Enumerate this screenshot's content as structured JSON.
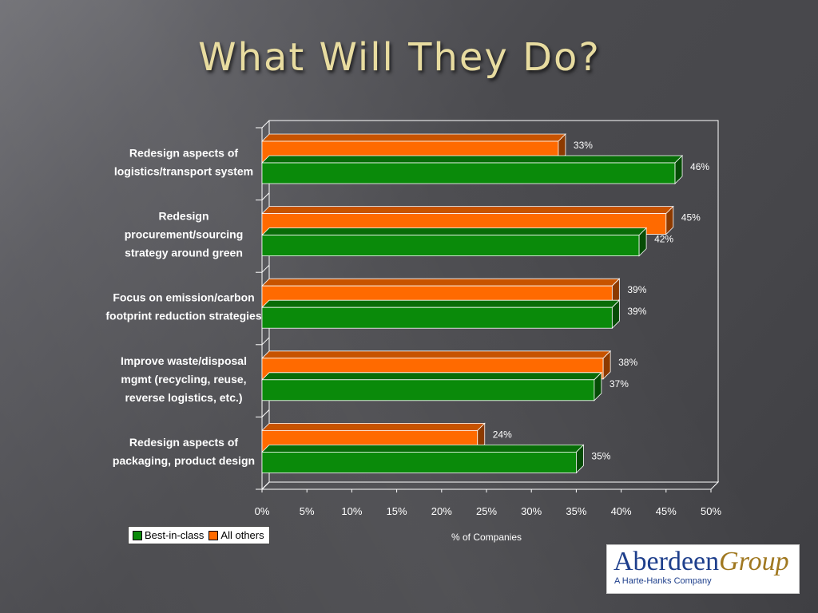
{
  "slide": {
    "title": "What Will They Do?"
  },
  "chart_data": {
    "type": "bar",
    "orientation": "horizontal",
    "categories": [
      "Redesign aspects of logistics/transport system",
      "Redesign procurement/sourcing strategy around green",
      "Focus on emission/carbon footprint reduction strategies",
      "Improve waste/disposal mgmt (recycling, reuse, reverse logistics, etc.)",
      "Redesign aspects of packaging, product design"
    ],
    "category_lines": [
      [
        "Redesign aspects of",
        "logistics/transport system"
      ],
      [
        "Redesign",
        "procurement/sourcing",
        "strategy around green"
      ],
      [
        "Focus on emission/carbon",
        "footprint reduction strategies"
      ],
      [
        "Improve waste/disposal",
        "mgmt (recycling, reuse,",
        "reverse logistics, etc.)"
      ],
      [
        "Redesign aspects of",
        "packaging, product design"
      ]
    ],
    "series": [
      {
        "name": "All others",
        "color": "#ff6a00",
        "values": [
          33,
          45,
          39,
          38,
          24
        ]
      },
      {
        "name": "Best-in-class",
        "color": "#0a8a0a",
        "values": [
          46,
          42,
          39,
          37,
          35
        ]
      }
    ],
    "legend_order": [
      "Best-in-class",
      "All others"
    ],
    "xlabel": "%  of Companies",
    "xlim": [
      0,
      50
    ],
    "xticks": [
      0,
      5,
      10,
      15,
      20,
      25,
      30,
      35,
      40,
      45,
      50
    ],
    "tick_suffix": "%",
    "value_suffix": "%",
    "legend_position": "bottom-left",
    "grid": false
  },
  "logo": {
    "name": "Aberdeen",
    "name_italic": "Group",
    "tagline": "A Harte-Hanks Company"
  }
}
